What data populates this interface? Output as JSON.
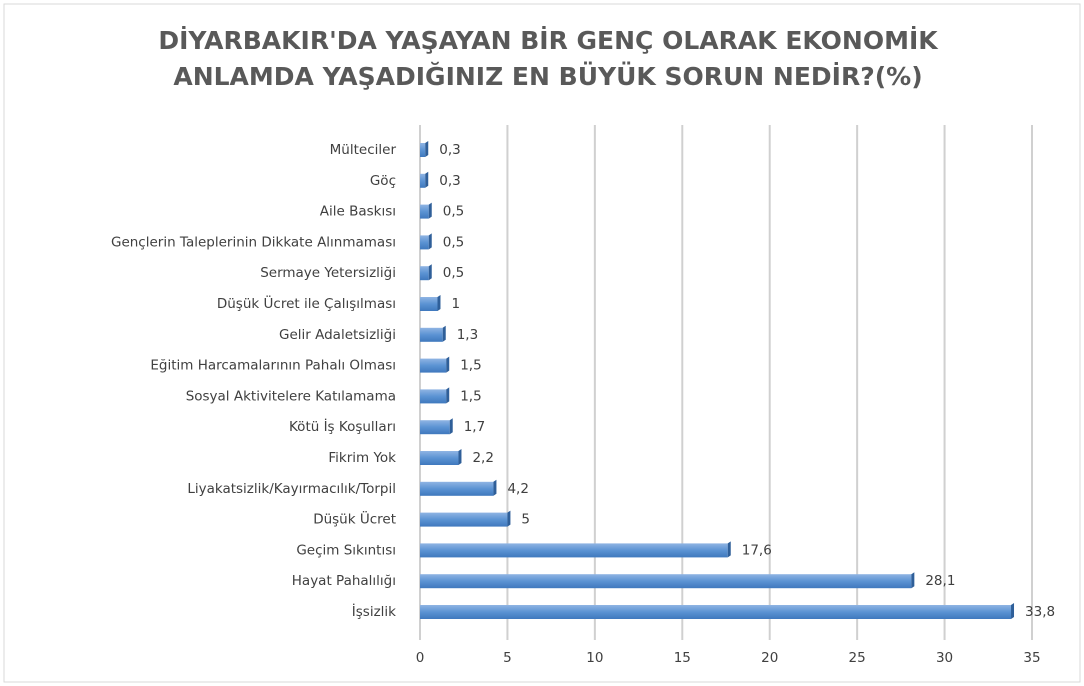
{
  "chart_data": {
    "type": "bar",
    "orientation": "horizontal",
    "title": [
      "DİYARBAKIR'DA YAŞAYAN BİR GENÇ OLARAK EKONOMİK",
      "ANLAMDA YAŞADIĞINIZ EN BÜYÜK SORUN NEDİR?(%)"
    ],
    "categories": [
      "Mülteciler",
      "Göç",
      "Aile Baskısı",
      "Gençlerin Taleplerinin Dikkate Alınmaması",
      "Sermaye Yetersizliği",
      "Düşük Ücret ile Çalışılması",
      "Gelir Adaletsizliği",
      "Eğitim Harcamalarının Pahalı Olması",
      "Sosyal Aktivitelere Katılamama",
      "Kötü İş Koşulları",
      "Fikrim Yok",
      "Liyakatsizlik/Kayırmacılık/Torpil",
      "Düşük Ücret",
      "Geçim Sıkıntısı",
      "Hayat Pahalılığı",
      "İşsizlik"
    ],
    "values": [
      0.3,
      0.3,
      0.5,
      0.5,
      0.5,
      1,
      1.3,
      1.5,
      1.5,
      1.7,
      2.2,
      4.2,
      5,
      17.6,
      28.1,
      33.8
    ],
    "value_labels": [
      "0,3",
      "0,3",
      "0,5",
      "0,5",
      "0,5",
      "1",
      "1,3",
      "1,5",
      "1,5",
      "1,7",
      "2,2",
      "4,2",
      "5",
      "17,6",
      "28,1",
      "33,8"
    ],
    "color": "#5b93d3",
    "xlim": [
      0,
      35
    ],
    "xticks": [
      0,
      5,
      10,
      15,
      20,
      25,
      30,
      35
    ],
    "grid": true
  }
}
